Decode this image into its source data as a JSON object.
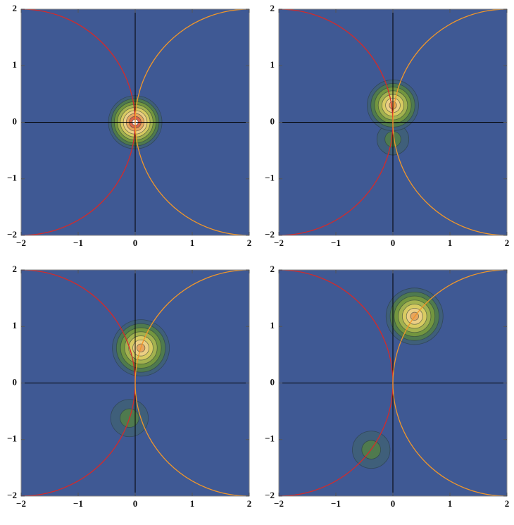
{
  "chart_data": [
    {
      "type": "contour",
      "xlim": [
        -2,
        2
      ],
      "ylim": [
        -2,
        2
      ],
      "xticks": [
        {
          "value": -2,
          "label": "−2"
        },
        {
          "value": -1,
          "label": "−1"
        },
        0,
        1,
        2
      ],
      "yticks": [
        {
          "value": -2,
          "label": "−2"
        },
        {
          "value": -1,
          "label": "−1"
        },
        0,
        1,
        2
      ],
      "circles": [
        {
          "color": "#d42a2a",
          "center": [
            -2,
            0
          ],
          "radius": 2
        },
        {
          "color": "#f0962a",
          "center": [
            2,
            0
          ],
          "radius": 2
        }
      ],
      "peaks": [
        {
          "x": 0,
          "y": 0,
          "radius": 0.47,
          "levels": 9
        }
      ]
    },
    {
      "type": "contour",
      "xlim": [
        -2,
        2
      ],
      "ylim": [
        -2,
        2
      ],
      "xticks": [
        {
          "value": -2,
          "label": "−2"
        },
        {
          "value": -1,
          "label": "−1"
        },
        0,
        1,
        2
      ],
      "yticks": [
        {
          "value": -2,
          "label": "−2"
        },
        {
          "value": -1,
          "label": "−1"
        },
        0,
        1,
        2
      ],
      "circles": [
        {
          "color": "#d42a2a",
          "center": [
            -2,
            0
          ],
          "radius": 2
        },
        {
          "color": "#f0962a",
          "center": [
            2,
            0
          ],
          "radius": 2
        }
      ],
      "peaks": [
        {
          "x": 0,
          "y": -0.3,
          "radius": 0.28,
          "levels": 2
        },
        {
          "x": 0,
          "y": 0.3,
          "radius": 0.45,
          "levels": 7
        }
      ]
    },
    {
      "type": "contour",
      "xlim": [
        -2,
        2
      ],
      "ylim": [
        -2,
        2
      ],
      "xticks": [
        {
          "value": -2,
          "label": "−2"
        },
        {
          "value": -1,
          "label": "−1"
        },
        0,
        1,
        2
      ],
      "yticks": [
        {
          "value": -2,
          "label": "−2"
        },
        {
          "value": -1,
          "label": "−1"
        },
        0,
        1,
        2
      ],
      "circles": [
        {
          "color": "#d42a2a",
          "center": [
            -2,
            0
          ],
          "radius": 2
        },
        {
          "color": "#f0962a",
          "center": [
            2,
            0
          ],
          "radius": 2
        }
      ],
      "peaks": [
        {
          "x": 0.1,
          "y": 0.62,
          "radius": 0.5,
          "levels": 7
        },
        {
          "x": -0.1,
          "y": -0.62,
          "radius": 0.33,
          "levels": 2
        }
      ]
    },
    {
      "type": "contour",
      "xlim": [
        -2,
        2
      ],
      "ylim": [
        -2,
        2
      ],
      "xticks": [
        {
          "value": -2,
          "label": "−2"
        },
        {
          "value": -1,
          "label": "−1"
        },
        0,
        1,
        2
      ],
      "yticks": [
        {
          "value": -2,
          "label": "−2"
        },
        {
          "value": -1,
          "label": "−1"
        },
        0,
        1,
        2
      ],
      "circles": [
        {
          "color": "#d42a2a",
          "center": [
            -2,
            0
          ],
          "radius": 2
        },
        {
          "color": "#f0962a",
          "center": [
            2,
            0
          ],
          "radius": 2
        }
      ],
      "peaks": [
        {
          "x": 0.38,
          "y": 1.18,
          "radius": 0.5,
          "levels": 7
        },
        {
          "x": -0.38,
          "y": -1.18,
          "radius": 0.33,
          "levels": 2
        }
      ]
    }
  ]
}
